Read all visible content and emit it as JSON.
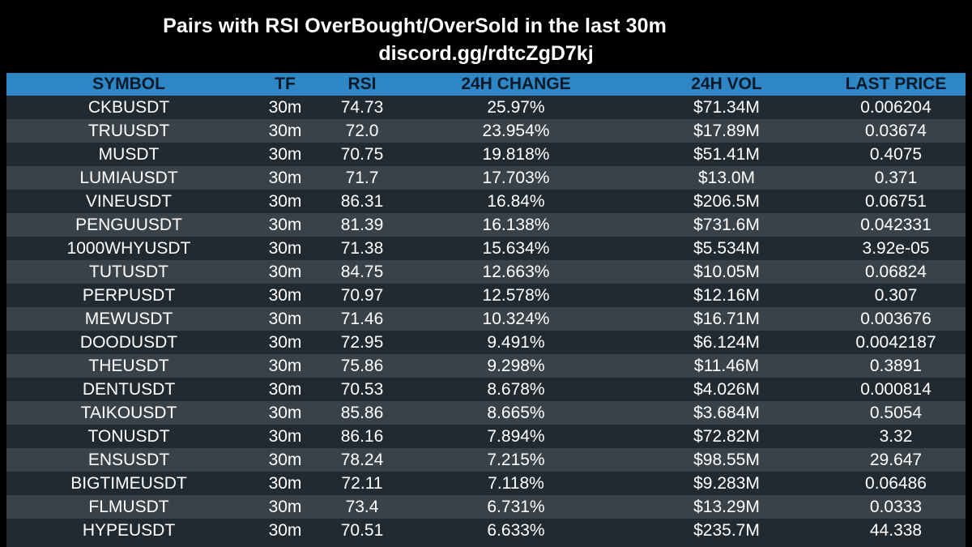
{
  "title": {
    "line1": "Pairs with RSI OverBought/OverSold in the last 30m",
    "line2": "discord.gg/rdtcZgD7kj"
  },
  "table": {
    "columns": [
      "SYMBOL",
      "TF",
      "RSI",
      "24H CHANGE",
      "24H VOL",
      "LAST PRICE"
    ],
    "rows": [
      [
        "CKBUSDT",
        "30m",
        "74.73",
        "25.97%",
        "$71.34M",
        "0.006204"
      ],
      [
        "TRUUSDT",
        "30m",
        "72.0",
        "23.954%",
        "$17.89M",
        "0.03674"
      ],
      [
        "MUSDT",
        "30m",
        "70.75",
        "19.818%",
        "$51.41M",
        "0.4075"
      ],
      [
        "LUMIAUSDT",
        "30m",
        "71.7",
        "17.703%",
        "$13.0M",
        "0.371"
      ],
      [
        "VINEUSDT",
        "30m",
        "86.31",
        "16.84%",
        "$206.5M",
        "0.06751"
      ],
      [
        "PENGUUSDT",
        "30m",
        "81.39",
        "16.138%",
        "$731.6M",
        "0.042331"
      ],
      [
        "1000WHYUSDT",
        "30m",
        "71.38",
        "15.634%",
        "$5.534M",
        "3.92e-05"
      ],
      [
        "TUTUSDT",
        "30m",
        "84.75",
        "12.663%",
        "$10.05M",
        "0.06824"
      ],
      [
        "PERPUSDT",
        "30m",
        "70.97",
        "12.578%",
        "$12.16M",
        "0.307"
      ],
      [
        "MEWUSDT",
        "30m",
        "71.46",
        "10.324%",
        "$16.71M",
        "0.003676"
      ],
      [
        "DOODUSDT",
        "30m",
        "72.95",
        "9.491%",
        "$6.124M",
        "0.0042187"
      ],
      [
        "THEUSDT",
        "30m",
        "75.86",
        "9.298%",
        "$11.46M",
        "0.3891"
      ],
      [
        "DENTUSDT",
        "30m",
        "70.53",
        "8.678%",
        "$4.026M",
        "0.000814"
      ],
      [
        "TAIKOUSDT",
        "30m",
        "85.86",
        "8.665%",
        "$3.684M",
        "0.5054"
      ],
      [
        "TONUSDT",
        "30m",
        "86.16",
        "7.894%",
        "$72.82M",
        "3.32"
      ],
      [
        "ENSUSDT",
        "30m",
        "78.24",
        "7.215%",
        "$98.55M",
        "29.647"
      ],
      [
        "BIGTIMEUSDT",
        "30m",
        "72.11",
        "7.118%",
        "$9.283M",
        "0.06486"
      ],
      [
        "FLMUSDT",
        "30m",
        "73.4",
        "6.731%",
        "$13.29M",
        "0.0333"
      ],
      [
        "HYPEUSDT",
        "30m",
        "70.51",
        "6.633%",
        "$235.7M",
        "44.338"
      ]
    ]
  },
  "colors": {
    "background": "#000000",
    "header": "#2e86c4",
    "row_dark": "#222a31",
    "row_light": "#3a4249",
    "text": "#ffffff",
    "header_text": "#0b1a2a"
  }
}
